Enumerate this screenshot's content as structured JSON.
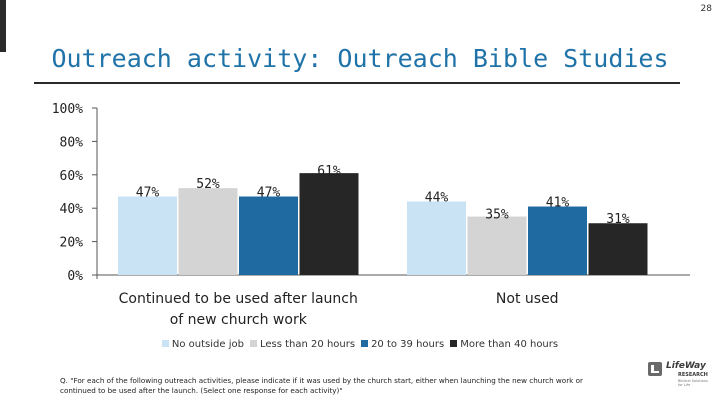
{
  "page_number": "28",
  "title": "Outreach activity: Outreach Bible Studies",
  "chart_data": {
    "type": "bar",
    "title": "Outreach activity: Outreach Bible Studies",
    "categories": [
      "Continued to be used after launch of new church work",
      "Not used"
    ],
    "category_lines": [
      [
        "Continued to be used after launch",
        "of new church work"
      ],
      [
        "Not used"
      ]
    ],
    "series": [
      {
        "name": "No outside job",
        "values": [
          47,
          44
        ],
        "labels": [
          "47%",
          "44%"
        ]
      },
      {
        "name": "Less than 20 hours",
        "values": [
          52,
          35
        ],
        "labels": [
          "52%",
          "35%"
        ]
      },
      {
        "name": "20 to 39 hours",
        "values": [
          47,
          41
        ],
        "labels": [
          "47%",
          "41%"
        ]
      },
      {
        "name": "More than 40 hours",
        "values": [
          61,
          31
        ],
        "labels": [
          "61%",
          "31%"
        ]
      }
    ],
    "colors": [
      "#c9e2f4",
      "#d4d4d4",
      "#1f6aa1",
      "#262626"
    ],
    "y_ticks": [
      "0%",
      "20%",
      "40%",
      "60%",
      "80%",
      "100%"
    ],
    "ylim": [
      0,
      100
    ],
    "grid": false,
    "legend_position": "bottom"
  },
  "footnote": "Q. \"For each of the following outreach activities, please indicate if it was used by the church start, either when launching the new church work or continued to be used after the launch. (Select one response for each activity)\"",
  "logo": {
    "line1": "LifeWay",
    "line2": "RESEARCH",
    "line3": "Biblical Solutions for Life"
  }
}
